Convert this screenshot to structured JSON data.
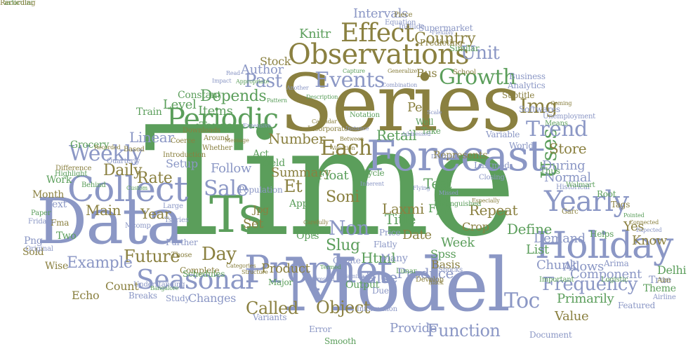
{
  "palette": {
    "green": "#5b9e5b",
    "olive": "#8a8040",
    "blue": "#8b97c5"
  },
  "words": [
    {
      "text": "Time",
      "color": "green"
    },
    {
      "text": "Series",
      "color": "olive"
    },
    {
      "text": "Model",
      "color": "blue"
    },
    {
      "text": "Data",
      "color": "blue"
    },
    {
      "text": "Forecast",
      "color": "blue"
    },
    {
      "text": "Prophet",
      "color": "blue"
    },
    {
      "text": "Ts",
      "color": "green"
    },
    {
      "text": "Holiday",
      "color": "blue"
    },
    {
      "text": "Collect",
      "color": "blue"
    },
    {
      "text": "Observations",
      "color": "olive"
    },
    {
      "text": "Periodic",
      "color": "green"
    },
    {
      "text": "Seasonal",
      "color": "blue"
    },
    {
      "text": "Yearly",
      "color": "blue"
    },
    {
      "text": "Effect",
      "color": "olive"
    },
    {
      "text": "Uses",
      "color": "green"
    },
    {
      "text": "Each",
      "color": "olive"
    },
    {
      "text": "Trend",
      "color": "blue"
    },
    {
      "text": "Events",
      "color": "blue"
    },
    {
      "text": "Growth",
      "color": "green"
    },
    {
      "text": "Frequency",
      "color": "blue"
    },
    {
      "text": "Function",
      "color": "blue"
    },
    {
      "text": "Object",
      "color": "olive"
    },
    {
      "text": "Sale",
      "color": "blue"
    },
    {
      "text": "Weekly",
      "color": "blue"
    },
    {
      "text": "Day",
      "color": "olive"
    },
    {
      "text": "Toc",
      "color": "blue"
    },
    {
      "text": "Called",
      "color": "olive"
    },
    {
      "text": "Img",
      "color": "olive"
    },
    {
      "text": "Unit",
      "color": "blue"
    },
    {
      "text": "Country",
      "color": "olive"
    },
    {
      "text": "Past",
      "color": "blue"
    },
    {
      "text": "Depends",
      "color": "green"
    },
    {
      "text": "Future",
      "color": "olive"
    },
    {
      "text": "Example",
      "color": "blue"
    },
    {
      "text": "Daily",
      "color": "olive"
    },
    {
      "text": "Knitr",
      "color": "green"
    },
    {
      "text": "Intervals",
      "color": "blue"
    },
    {
      "text": "Stock",
      "color": "olive"
    },
    {
      "text": "Author",
      "color": "blue"
    },
    {
      "text": "Level",
      "color": "green"
    },
    {
      "text": "Items",
      "color": "green"
    },
    {
      "text": "Constant",
      "color": "green"
    },
    {
      "text": "Tango",
      "color": "green"
    },
    {
      "text": "Train",
      "color": "green"
    },
    {
      "text": "Linear",
      "color": "blue"
    },
    {
      "text": "Grocery",
      "color": "green"
    },
    {
      "text": "Rate",
      "color": "olive"
    },
    {
      "text": "Main",
      "color": "olive"
    },
    {
      "text": "Year",
      "color": "olive"
    },
    {
      "text": "Setup",
      "color": "blue"
    },
    {
      "text": "Follow",
      "color": "blue"
    },
    {
      "text": "Summary",
      "color": "olive"
    },
    {
      "text": "Float",
      "color": "green"
    },
    {
      "text": "Et",
      "color": "olive"
    },
    {
      "text": "Soni",
      "color": "olive"
    },
    {
      "text": "Non",
      "color": "blue"
    },
    {
      "text": "Slug",
      "color": "green"
    },
    {
      "text": "Html",
      "color": "green"
    },
    {
      "text": "Laxmi",
      "color": "olive"
    },
    {
      "text": "Title",
      "color": "green"
    },
    {
      "text": "Date",
      "color": "olive"
    },
    {
      "text": "Test",
      "color": "green"
    },
    {
      "text": "Number",
      "color": "olive"
    },
    {
      "text": "Retail",
      "color": "green"
    },
    {
      "text": "Store",
      "color": "olive"
    },
    {
      "text": "During",
      "color": "blue"
    },
    {
      "text": "Normal",
      "color": "blue"
    },
    {
      "text": "Define",
      "color": "green"
    },
    {
      "text": "Demand",
      "color": "blue"
    },
    {
      "text": "Week",
      "color": "green"
    },
    {
      "text": "Know",
      "color": "olive"
    },
    {
      "text": "Yes",
      "color": "olive"
    },
    {
      "text": "List",
      "color": "green"
    },
    {
      "text": "Chunk",
      "color": "blue"
    },
    {
      "text": "Allows",
      "color": "blue"
    },
    {
      "text": "Component",
      "color": "blue"
    },
    {
      "text": "Delhi",
      "color": "green"
    },
    {
      "text": "Theme",
      "color": "green"
    },
    {
      "text": "True",
      "color": "blue"
    },
    {
      "text": "Primarily",
      "color": "green"
    },
    {
      "text": "Value",
      "color": "olive"
    },
    {
      "text": "Produce",
      "color": "blue"
    },
    {
      "text": "Provide",
      "color": "blue"
    },
    {
      "text": "Product",
      "color": "olive"
    },
    {
      "text": "Basis",
      "color": "olive"
    },
    {
      "text": "Spss",
      "color": "green"
    },
    {
      "text": "Repeat",
      "color": "olive"
    },
    {
      "text": "Crop",
      "color": "olive"
    },
    {
      "text": "False",
      "color": "blue"
    },
    {
      "text": "Count",
      "color": "olive"
    },
    {
      "text": "Changes",
      "color": "blue"
    },
    {
      "text": "Echo",
      "color": "olive"
    },
    {
      "text": "Wise",
      "color": "olive"
    },
    {
      "text": "Sold",
      "color": "olive"
    },
    {
      "text": "Two",
      "color": "green"
    },
    {
      "text": "Png",
      "color": "blue"
    },
    {
      "text": "Fma",
      "color": "olive"
    },
    {
      "text": "Text",
      "color": "blue"
    },
    {
      "text": "Month",
      "color": "olive"
    },
    {
      "text": "Work",
      "color": "green"
    },
    {
      "text": "Set",
      "color": "olive"
    },
    {
      "text": "Jpg",
      "color": "olive"
    },
    {
      "text": "App",
      "color": "green"
    },
    {
      "text": "Opts",
      "color": "green"
    },
    {
      "text": "Many",
      "color": "blue"
    },
    {
      "text": "People",
      "color": "green"
    },
    {
      "text": "Fpp",
      "color": "green"
    },
    {
      "text": "Per",
      "color": "olive"
    },
    {
      "text": "Represents",
      "color": "olive"
    },
    {
      "text": "Act",
      "color": "green"
    },
    {
      "text": "Yield",
      "color": "green"
    },
    {
      "text": "Bus",
      "color": "olive"
    },
    {
      "text": "Arima",
      "color": "blue"
    },
    {
      "text": "Breaks",
      "color": "blue"
    },
    {
      "text": "Cycle",
      "color": "green"
    },
    {
      "text": "Root",
      "color": "green"
    },
    {
      "text": "Tags",
      "color": "olive"
    },
    {
      "text": "Well",
      "color": "green"
    },
    {
      "text": "Take",
      "color": "green"
    },
    {
      "text": "Population",
      "color": "blue"
    },
    {
      "text": "Study",
      "color": "blue"
    },
    {
      "text": "Price",
      "color": "blue"
    },
    {
      "text": "Flatly",
      "color": "blue"
    },
    {
      "text": "Output",
      "color": "green"
    },
    {
      "text": "Error",
      "color": "blue"
    },
    {
      "text": "Smooth",
      "color": "green"
    },
    {
      "text": "Due",
      "color": "blue"
    },
    {
      "text": "Create",
      "color": "blue"
    },
    {
      "text": "Further",
      "color": "blue"
    },
    {
      "text": "Major",
      "color": "green"
    },
    {
      "text": "Helps",
      "color": "green"
    },
    {
      "text": "Variants",
      "color": "blue"
    },
    {
      "text": "Document",
      "color": "blue"
    },
    {
      "text": "Featured",
      "color": "blue"
    },
    {
      "text": "Airline",
      "color": "blue"
    },
    {
      "text": "Logistic",
      "color": "green"
    },
    {
      "text": "Important",
      "color": "green"
    },
    {
      "text": "Historical",
      "color": "blue"
    },
    {
      "text": "Walmart",
      "color": "green"
    },
    {
      "text": "Aim",
      "color": "olive"
    },
    {
      "text": "Garc",
      "color": "olive"
    },
    {
      "text": "Subtitle",
      "color": "olive"
    },
    {
      "text": "Analytics",
      "color": "blue"
    },
    {
      "text": "Coming",
      "color": "olive"
    },
    {
      "text": "Business",
      "color": "blue"
    },
    {
      "text": "School",
      "color": "olive"
    },
    {
      "text": "Unemployment",
      "color": "blue"
    },
    {
      "text": "Softwares",
      "color": "blue"
    },
    {
      "text": "Means",
      "color": "green"
    },
    {
      "text": "Variable",
      "color": "blue"
    },
    {
      "text": "World",
      "color": "blue"
    },
    {
      "text": "Lastmod",
      "color": "blue"
    },
    {
      "text": "Thus",
      "color": "green"
    },
    {
      "text": "Closing",
      "color": "blue"
    },
    {
      "text": "Scale",
      "color": "blue"
    },
    {
      "text": "Describes",
      "color": "blue"
    },
    {
      "text": "Supermarket",
      "color": "blue"
    },
    {
      "text": "Similar",
      "color": "green"
    },
    {
      "text": "Predicting",
      "color": "olive"
    },
    {
      "text": "Include",
      "color": "blue"
    },
    {
      "text": "Piece",
      "color": "olive"
    },
    {
      "text": "Equation",
      "color": "blue"
    },
    {
      "text": "Flexibly",
      "color": "blue"
    },
    {
      "text": "Capture",
      "color": "green"
    },
    {
      "text": "Generalize",
      "color": "olive"
    },
    {
      "text": "Combination",
      "color": "blue"
    },
    {
      "text": "Another",
      "color": "blue"
    },
    {
      "text": "Description",
      "color": "green"
    },
    {
      "text": "Pattern",
      "color": "green"
    },
    {
      "text": "Notation",
      "color": "green"
    },
    {
      "text": "Around",
      "color": "olive"
    },
    {
      "text": "Downloads",
      "color": "olive"
    },
    {
      "text": "Message",
      "color": "olive"
    },
    {
      "text": "Whether",
      "color": "olive"
    },
    {
      "text": "Coerce",
      "color": "olive"
    },
    {
      "text": "Introduction",
      "color": "olive"
    },
    {
      "text": "Difference",
      "color": "olive"
    },
    {
      "text": "Highlight",
      "color": "green"
    },
    {
      "text": "Recorded",
      "color": "olive"
    },
    {
      "text": "Based",
      "color": "olive"
    },
    {
      "text": "Quarterly",
      "color": "blue"
    },
    {
      "text": "Behind",
      "color": "green"
    },
    {
      "text": "Custom",
      "color": "green"
    },
    {
      "text": "Paper",
      "color": "green"
    },
    {
      "text": "Fridays",
      "color": "blue"
    },
    {
      "text": "Original",
      "color": "blue"
    },
    {
      "text": "Mcomp",
      "color": "blue"
    },
    {
      "text": "Tseries",
      "color": "blue"
    },
    {
      "text": "Large",
      "color": "blue"
    },
    {
      "text": "Those",
      "color": "olive"
    },
    {
      "text": "Complete",
      "color": "olive"
    },
    {
      "text": "Schedules",
      "color": "green"
    },
    {
      "text": "Understanding",
      "color": "blue"
    },
    {
      "text": "Bangalore",
      "color": "green"
    },
    {
      "text": "Categories",
      "color": "olive"
    },
    {
      "text": "Structure",
      "color": "olive"
    },
    {
      "text": "Interested",
      "color": "blue"
    },
    {
      "text": "Information",
      "color": "blue"
    },
    {
      "text": "Lunar",
      "color": "green"
    },
    {
      "text": "Warning",
      "color": "blue"
    },
    {
      "text": "Termed",
      "color": "green"
    },
    {
      "text": "Develop",
      "color": "olive"
    },
    {
      "text": "Black",
      "color": "olive"
    },
    {
      "text": "Shocks",
      "color": "blue"
    },
    {
      "text": "Distinguished",
      "color": "green"
    },
    {
      "text": "Missed",
      "color": "blue"
    },
    {
      "text": "Flying",
      "color": "blue"
    },
    {
      "text": "Inherent",
      "color": "blue"
    },
    {
      "text": "Vacation",
      "color": "olive"
    },
    {
      "text": "Between",
      "color": "olive"
    },
    {
      "text": "Instance",
      "color": "blue"
    },
    {
      "text": "Calendar",
      "color": "olive"
    },
    {
      "text": "Incorporate",
      "color": "olive"
    },
    {
      "text": "Expensive",
      "color": "blue"
    },
    {
      "text": "Read",
      "color": "blue"
    },
    {
      "text": "Appropriate",
      "color": "green"
    },
    {
      "text": "Carefully",
      "color": "olive"
    },
    {
      "text": "Especially",
      "color": "olive"
    },
    {
      "text": "Impact",
      "color": "blue"
    },
    {
      "text": "Addressed",
      "color": "blue"
    },
    {
      "text": "Pointed",
      "color": "green"
    },
    {
      "text": "Connected",
      "color": "olive"
    },
    {
      "text": "Expected",
      "color": "blue"
    },
    {
      "text": "Particular",
      "color": "green"
    },
    {
      "text": "Recording",
      "color": "olive"
    }
  ]
}
